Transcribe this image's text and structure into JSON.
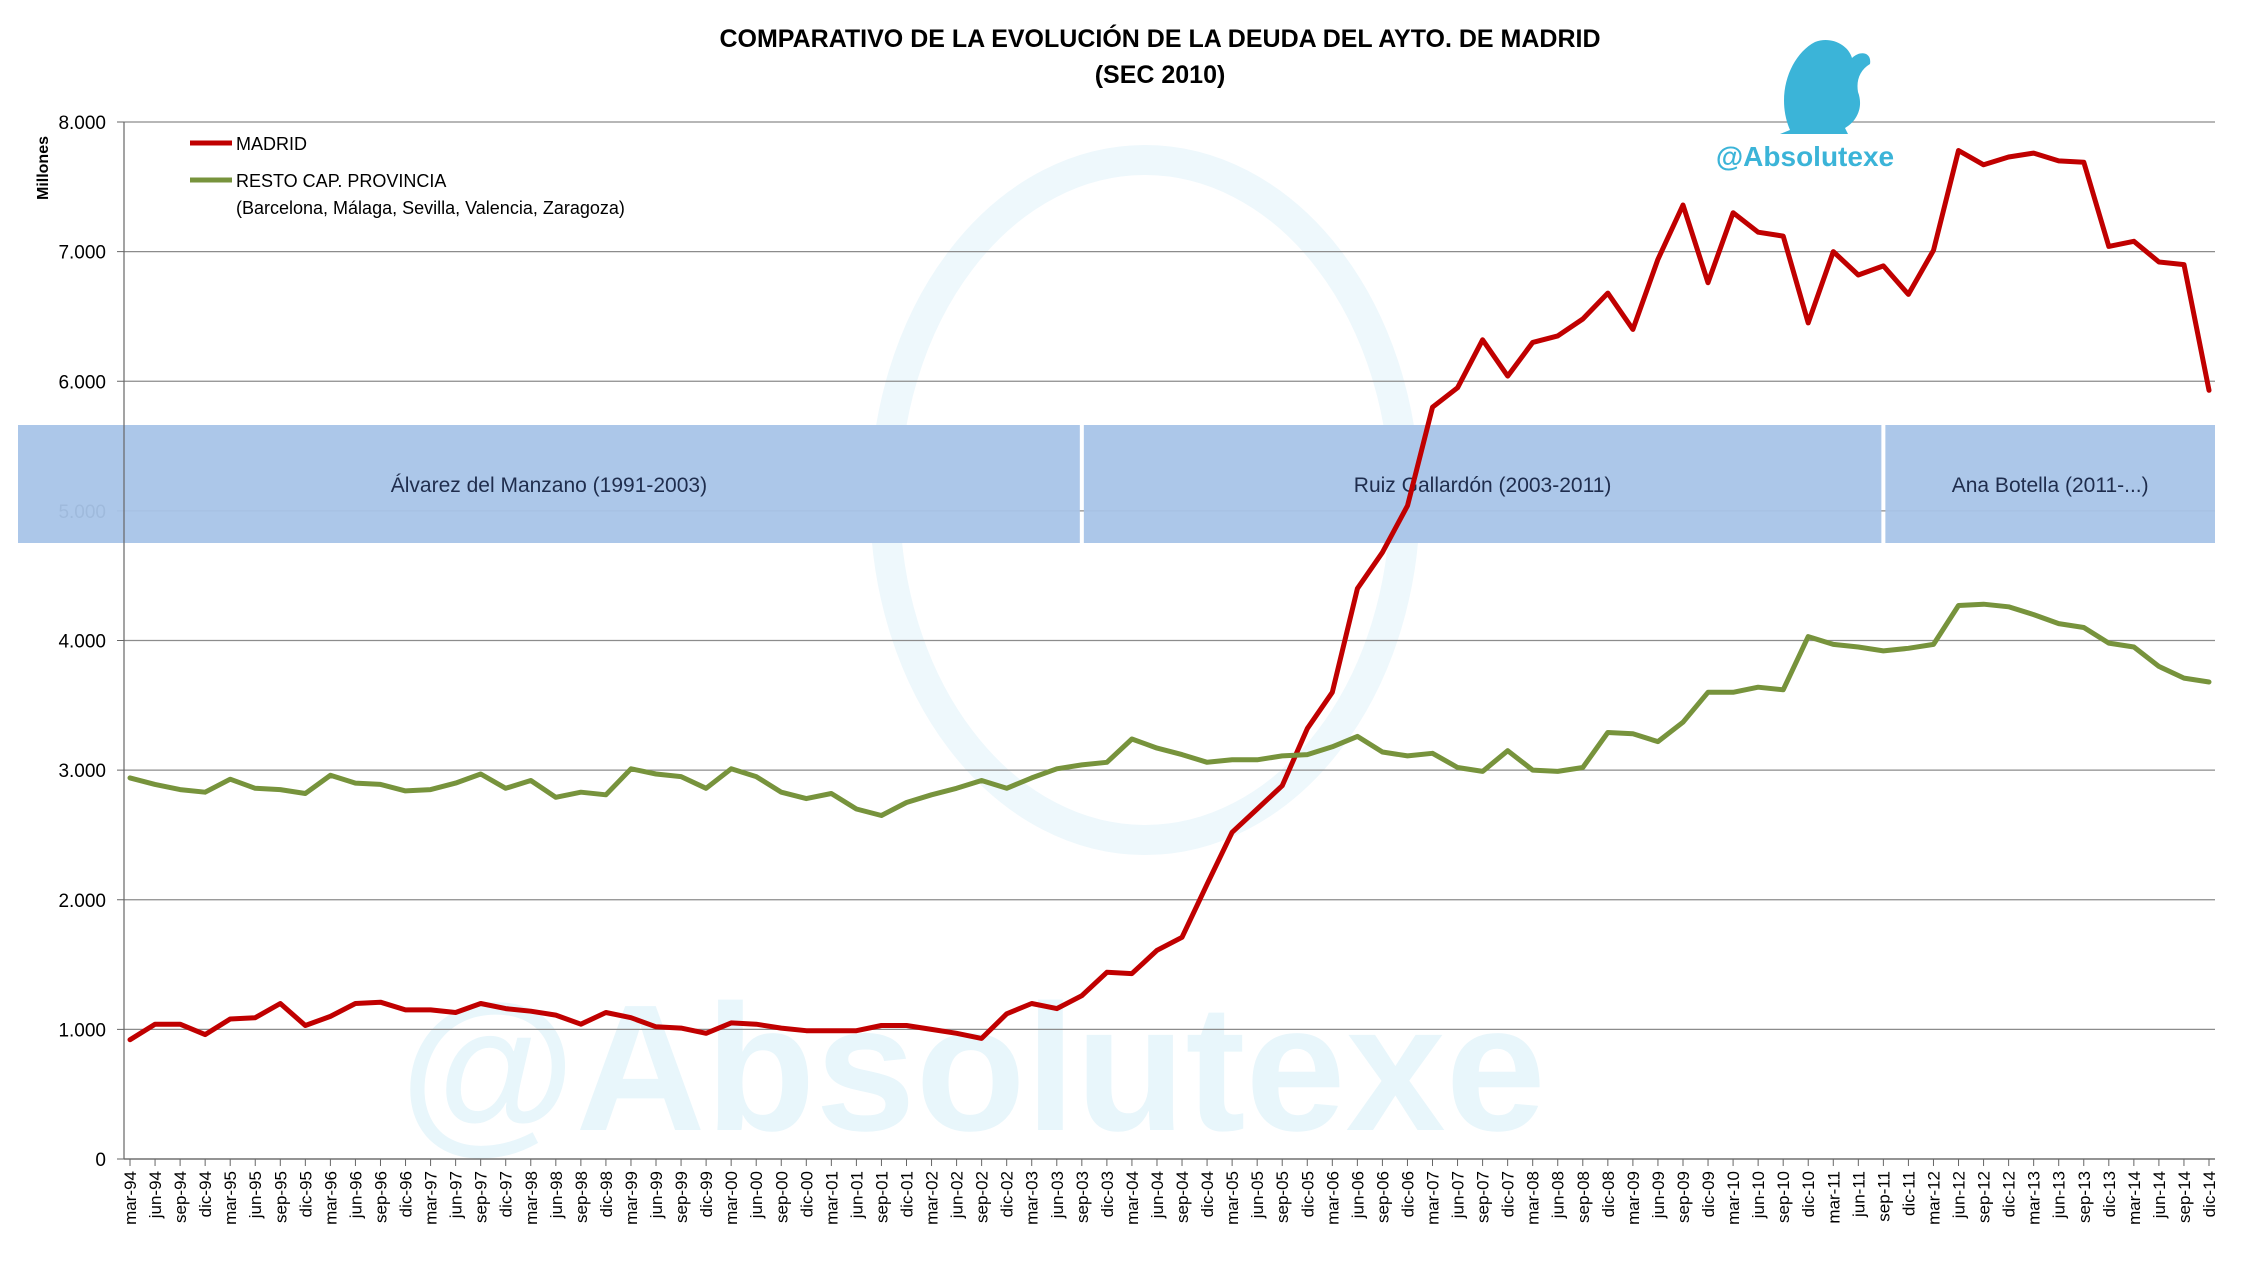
{
  "chart_data": {
    "type": "line",
    "title": "COMPARATIVO DE LA EVOLUCIÓN DE LA DEUDA DEL AYTO. DE MADRID",
    "subtitle": "(SEC 2010)",
    "ylabel": "Millones",
    "xlabel": "",
    "ylim": [
      0,
      8000
    ],
    "yticks": [
      "0",
      "1.000",
      "2.000",
      "3.000",
      "4.000",
      "5.000",
      "6.000",
      "7.000",
      "8.000"
    ],
    "ytick_values": [
      0,
      1000,
      2000,
      3000,
      4000,
      5000,
      6000,
      7000,
      8000
    ],
    "grid": "horizontal",
    "legend_position": "top-left",
    "x": [
      "mar-94",
      "jun-94",
      "sep-94",
      "dic-94",
      "mar-95",
      "jun-95",
      "sep-95",
      "dic-95",
      "mar-96",
      "jun-96",
      "sep-96",
      "dic-96",
      "mar-97",
      "jun-97",
      "sep-97",
      "dic-97",
      "mar-98",
      "jun-98",
      "sep-98",
      "dic-98",
      "mar-99",
      "jun-99",
      "sep-99",
      "dic-99",
      "mar-00",
      "jun-00",
      "sep-00",
      "dic-00",
      "mar-01",
      "jun-01",
      "sep-01",
      "dic-01",
      "mar-02",
      "jun-02",
      "sep-02",
      "dic-02",
      "mar-03",
      "jun-03",
      "sep-03",
      "dic-03",
      "mar-04",
      "jun-04",
      "sep-04",
      "dic-04",
      "mar-05",
      "jun-05",
      "sep-05",
      "dic-05",
      "mar-06",
      "jun-06",
      "sep-06",
      "dic-06",
      "mar-07",
      "jun-07",
      "sep-07",
      "dic-07",
      "mar-08",
      "jun-08",
      "sep-08",
      "dic-08",
      "mar-09",
      "jun-09",
      "sep-09",
      "dic-09",
      "mar-10",
      "jun-10",
      "sep-10",
      "dic-10",
      "mar-11",
      "jun-11",
      "sep-11",
      "dic-11",
      "mar-12",
      "jun-12",
      "sep-12",
      "dic-12",
      "mar-13",
      "jun-13",
      "sep-13",
      "dic-13",
      "mar-14",
      "jun-14",
      "sep-14",
      "dic-14"
    ],
    "series": [
      {
        "name": "MADRID",
        "color": "#c00000",
        "values": [
          920,
          1040,
          1040,
          960,
          1080,
          1090,
          1200,
          1030,
          1100,
          1200,
          1210,
          1150,
          1150,
          1130,
          1200,
          1160,
          1140,
          1110,
          1040,
          1130,
          1090,
          1020,
          1010,
          970,
          1050,
          1040,
          1010,
          990,
          990,
          990,
          1030,
          1030,
          1000,
          970,
          930,
          1120,
          1200,
          1160,
          1260,
          1440,
          1430,
          1610,
          1710,
          2120,
          2520,
          2700,
          2880,
          3320,
          3600,
          4400,
          4680,
          5040,
          5800,
          5950,
          6320,
          6040,
          6300,
          6350,
          6480,
          6680,
          6400,
          6940,
          7360,
          6760,
          7300,
          7150,
          7120,
          6450,
          7000,
          6820,
          6890,
          6670,
          7010,
          7780,
          7670,
          7730,
          7760,
          7700,
          7690,
          7040,
          7080,
          6920,
          6900,
          5930
        ]
      },
      {
        "name": "RESTO CAP. PROVINCIA",
        "note": "(Barcelona, Málaga, Sevilla, Valencia, Zaragoza)",
        "color": "#77933c",
        "values": [
          2940,
          2890,
          2850,
          2830,
          2930,
          2860,
          2850,
          2820,
          2960,
          2900,
          2890,
          2840,
          2850,
          2900,
          2970,
          2860,
          2920,
          2790,
          2830,
          2810,
          3010,
          2970,
          2950,
          2860,
          3010,
          2950,
          2830,
          2780,
          2820,
          2700,
          2650,
          2750,
          2810,
          2860,
          2920,
          2860,
          2940,
          3010,
          3040,
          3060,
          3240,
          3170,
          3120,
          3060,
          3080,
          3080,
          3110,
          3120,
          3180,
          3260,
          3140,
          3110,
          3130,
          3020,
          2990,
          3150,
          3000,
          2990,
          3020,
          3290,
          3280,
          3220,
          3370,
          3600,
          3600,
          3640,
          3620,
          4030,
          3970,
          3950,
          3920,
          3940,
          3970,
          4270,
          4280,
          4260,
          4200,
          4130,
          4100,
          3980,
          3950,
          3800,
          3710,
          3680
        ]
      }
    ],
    "bands": [
      {
        "label": "Álvarez del Manzano (1991-2003)",
        "from": "mar-94",
        "to": "sep-03"
      },
      {
        "label": "Ruiz Gallardón (2003-2011)",
        "from": "sep-03",
        "to": "sep-11"
      },
      {
        "label": "Ana Botella (2011-...)",
        "from": "sep-11",
        "to": "dic-14"
      }
    ],
    "band_color": "#a8c4e8",
    "brand": "@Absolutexe",
    "watermark": "@Absolutexe"
  }
}
